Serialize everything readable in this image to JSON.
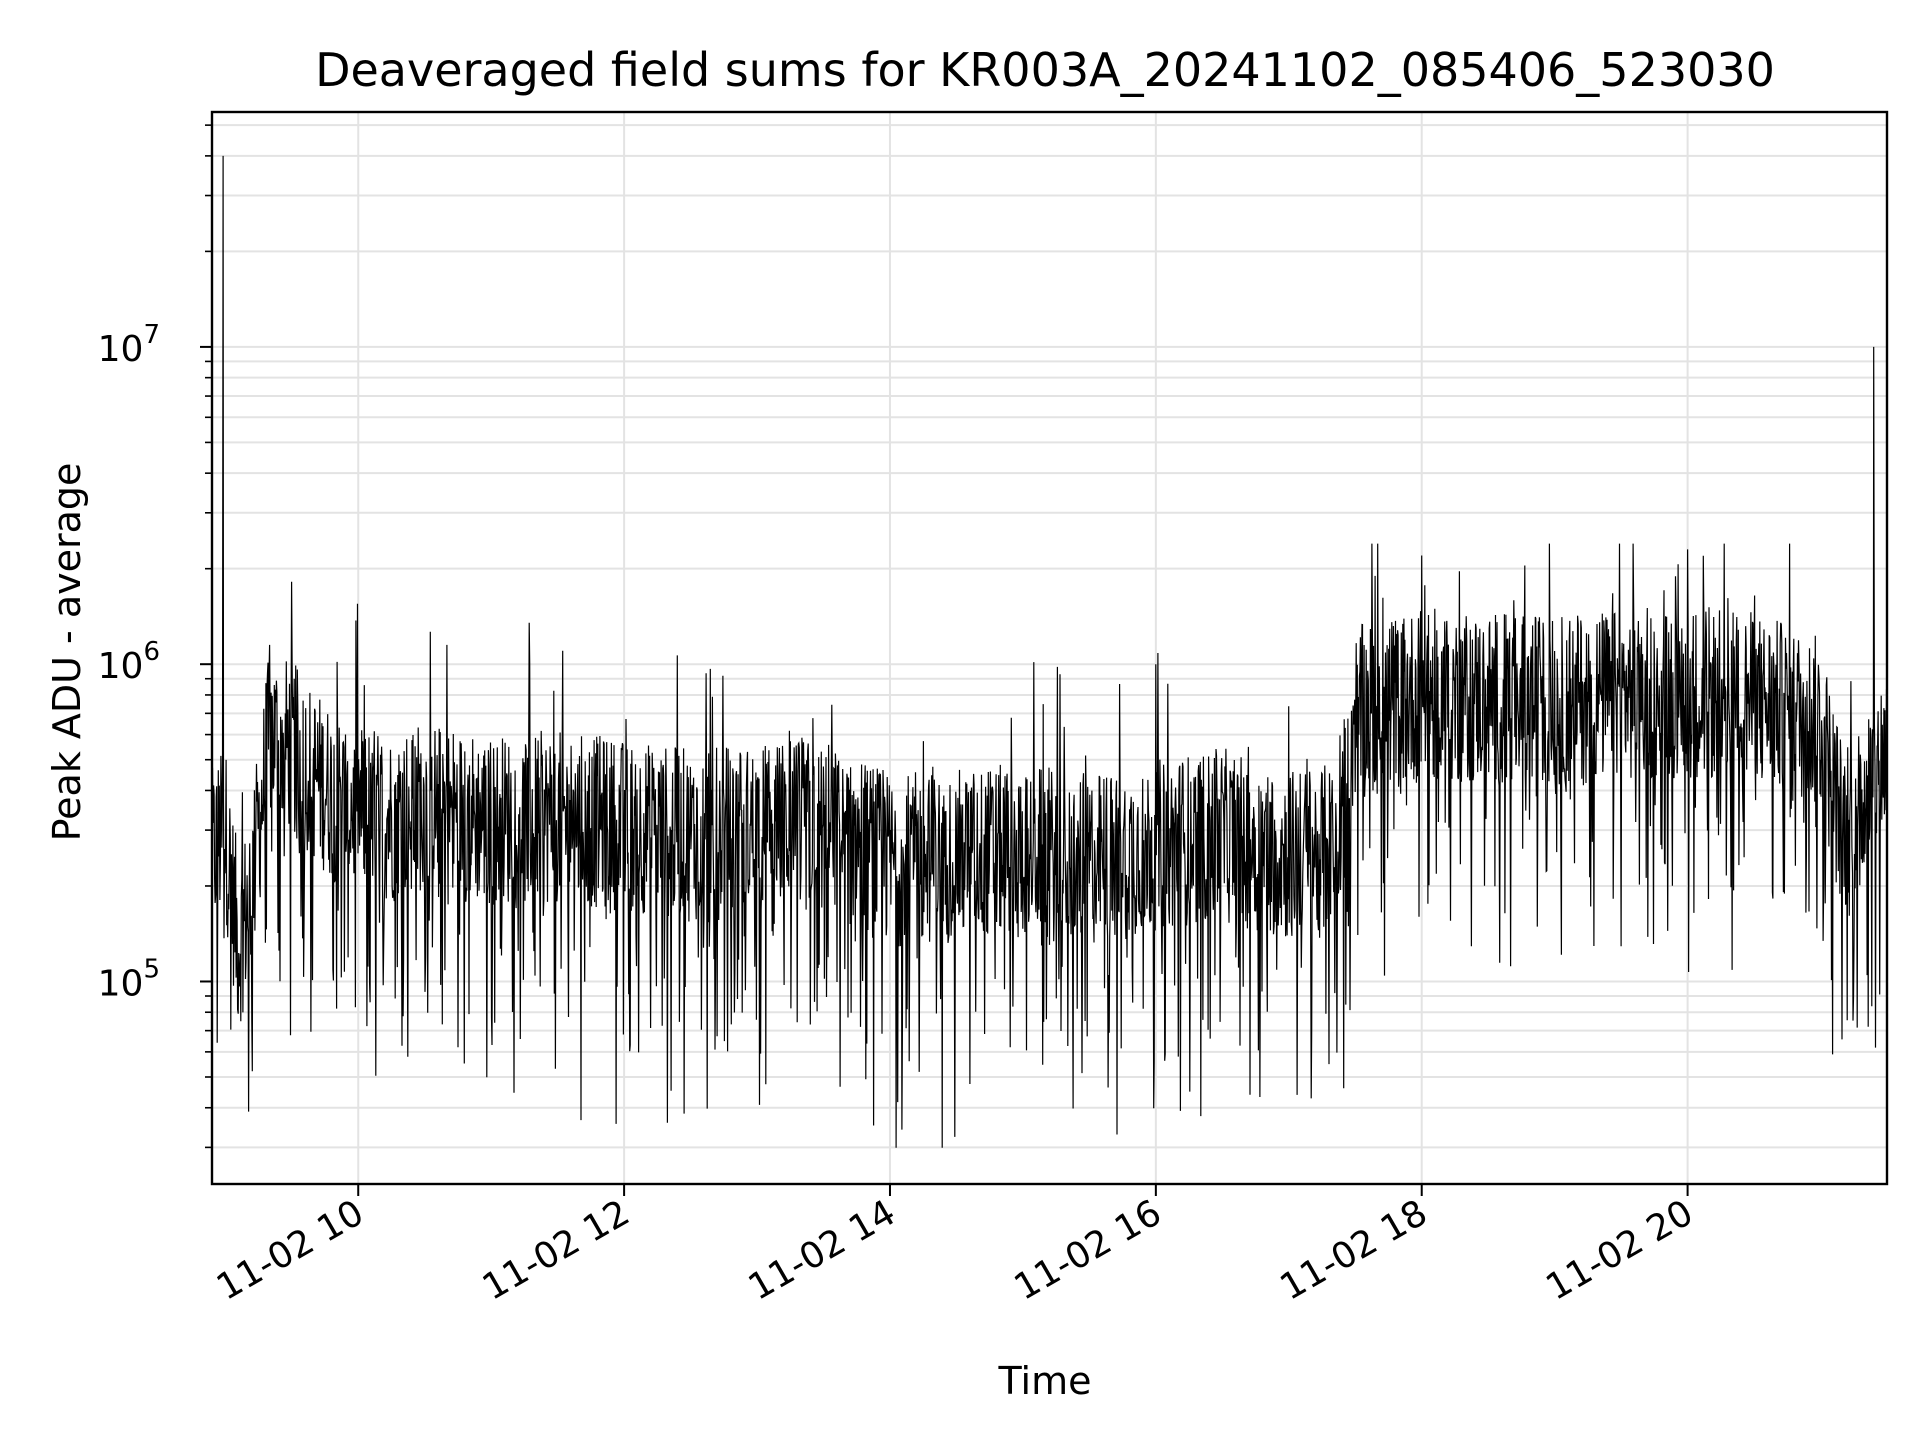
{
  "chart_data": {
    "type": "line",
    "title": "Deaveraged field sums for KR003A_20241102_085406_523030",
    "xlabel": "Time",
    "ylabel": "Peak ADU - average",
    "x_scale": "time",
    "y_scale": "log",
    "xlim": [
      "2024-11-02 08:54",
      "2024-11-02 21:30"
    ],
    "ylim": [
      23000,
      55000000
    ],
    "x_tick_labels": [
      "11-02 10",
      "11-02 12",
      "11-02 14",
      "11-02 16",
      "11-02 18",
      "11-02 20"
    ],
    "y_tick_labels": [
      {
        "base": "10",
        "exp": "5"
      },
      {
        "base": "10",
        "exp": "6"
      },
      {
        "base": "10",
        "exp": "7"
      }
    ],
    "grid": true,
    "line_color": "#000000",
    "grid_color": "#e3e3e3",
    "series": [
      {
        "x": [
          "08:54",
          "09:00",
          "09:06",
          "09:12",
          "09:20",
          "09:30",
          "09:40",
          "09:50",
          "10:00",
          "10:15",
          "10:30",
          "10:45",
          "11:00",
          "11:30",
          "12:00",
          "12:30",
          "13:00",
          "13:30",
          "14:00",
          "14:30",
          "15:00",
          "15:30",
          "16:00",
          "16:30",
          "17:00",
          "17:20",
          "17:30",
          "17:45",
          "18:00",
          "18:30",
          "19:00",
          "19:30",
          "20:00",
          "20:30",
          "20:50",
          "21:00",
          "21:10",
          "21:20",
          "21:30"
        ],
        "y": [
          250000,
          300000,
          130000,
          200000,
          600000,
          550000,
          450000,
          380000,
          350000,
          330000,
          360000,
          340000,
          320000,
          330000,
          310000,
          290000,
          300000,
          310000,
          240000,
          250000,
          260000,
          240000,
          270000,
          290000,
          250000,
          260000,
          700000,
          750000,
          800000,
          780000,
          760000,
          800000,
          820000,
          780000,
          700000,
          650000,
          300000,
          380000,
          550000
        ]
      }
    ],
    "spikes": [
      {
        "x": "08:59",
        "y": 40000000
      },
      {
        "x": "21:24",
        "y": 10000000
      },
      {
        "x": "20:00",
        "y": 2300000
      },
      {
        "x": "18:00",
        "y": 2200000
      },
      {
        "x": "16:00",
        "y": 1000000
      },
      {
        "x": "10:40",
        "y": 1150000
      },
      {
        "x": "09:20",
        "y": 1150000
      }
    ]
  }
}
